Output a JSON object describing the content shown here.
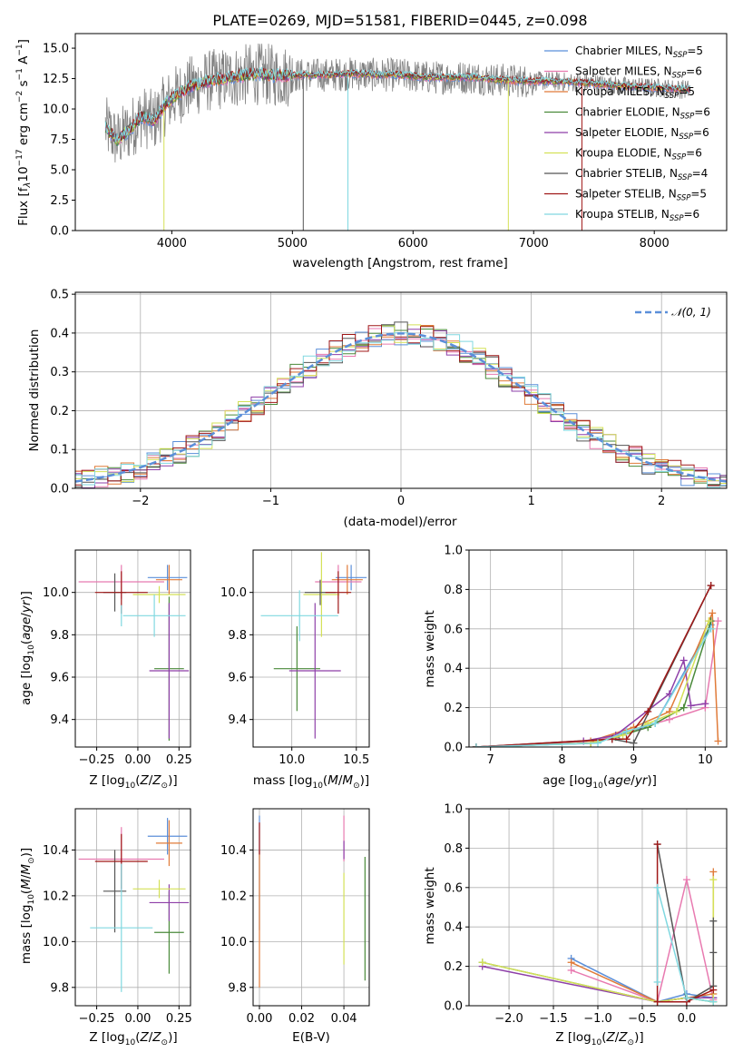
{
  "figure": {
    "title": "PLATE=0269, MJD=51581, FIBERID=0445, z=0.098"
  },
  "legend": [
    {
      "name": "Chabrier MILES, N$_{SSP}$=5",
      "base": "Chabrier MILES, N",
      "sub": "SSP",
      "tail": "=5",
      "color": "#5b8fd9"
    },
    {
      "name": "Salpeter MILES, N$_{SSP}$=6",
      "base": "Salpeter MILES, N",
      "sub": "SSP",
      "tail": "=6",
      "color": "#e87ab0"
    },
    {
      "name": "Kroupa MILES, N$_{SSP}$=5",
      "base": "Kroupa MILES, N",
      "sub": "SSP",
      "tail": "=5",
      "color": "#e07b39"
    },
    {
      "name": "Chabrier ELODIE, N$_{SSP}$=6",
      "base": "Chabrier ELODIE, N",
      "sub": "SSP",
      "tail": "=6",
      "color": "#4a8a3a"
    },
    {
      "name": "Salpeter ELODIE, N$_{SSP}$=6",
      "base": "Salpeter ELODIE, N",
      "sub": "SSP",
      "tail": "=6",
      "color": "#8e3fa8"
    },
    {
      "name": "Kroupa ELODIE, N$_{SSP}$=6",
      "base": "Kroupa ELODIE, N",
      "sub": "SSP",
      "tail": "=6",
      "color": "#d4e157"
    },
    {
      "name": "Chabrier STELIB, N$_{SSP}$=4",
      "base": "Chabrier STELIB, N",
      "sub": "SSP",
      "tail": "=4",
      "color": "#555555"
    },
    {
      "name": "Salpeter STELIB, N$_{SSP}$=5",
      "base": "Salpeter STELIB, N",
      "sub": "SSP",
      "tail": "=5",
      "color": "#a01818"
    },
    {
      "name": "Kroupa STELIB, N$_{SSP}$=6",
      "base": "Kroupa STELIB, N",
      "sub": "SSP",
      "tail": "=6",
      "color": "#80d8e0"
    }
  ],
  "chart_data": [
    {
      "id": "spectrum",
      "type": "line",
      "title": "PLATE=0269, MJD=51581, FIBERID=0445, z=0.098",
      "xlabel": "wavelength [Angstrom, rest frame]",
      "ylabel": "Flux [f$_\\lambda$10$^{-17}$ erg cm$^{-2}$ s$^{-1}$ A$^{-1}$]",
      "ylabel_text": {
        "a": "Flux [f",
        "b": "λ",
        "c": "10",
        "d": "−17",
        "e": " erg cm",
        "f": "−2",
        "g": " s",
        "h": "−1",
        "i": " A",
        "j": "−1",
        "k": "]"
      },
      "xlim": [
        3200,
        8600
      ],
      "ylim": [
        0,
        16.2
      ],
      "xticks": [
        4000,
        5000,
        6000,
        7000,
        8000
      ],
      "yticks": [
        0.0,
        2.5,
        5.0,
        7.5,
        10.0,
        12.5,
        15.0
      ],
      "xtick_labels": [
        "4000",
        "5000",
        "6000",
        "7000",
        "8000"
      ],
      "ytick_labels": [
        "0.0",
        "2.5",
        "5.0",
        "7.5",
        "10.0",
        "12.5",
        "15.0"
      ],
      "continuum": {
        "x": [
          3450,
          3550,
          3650,
          3750,
          3850,
          3950,
          4050,
          4150,
          4300,
          4500,
          4700,
          4900,
          5100,
          5300,
          5500,
          5700,
          5900,
          6100,
          6300,
          6500,
          6700,
          6900,
          7100,
          7300,
          7500,
          7700,
          7900,
          8100,
          8300
        ],
        "y": [
          8.5,
          7.4,
          8.3,
          9.4,
          9.0,
          10.4,
          11.2,
          11.8,
          12.3,
          12.6,
          12.9,
          12.7,
          12.8,
          12.8,
          12.9,
          12.8,
          12.8,
          12.6,
          12.6,
          12.6,
          12.4,
          12.3,
          12.3,
          12.2,
          12.1,
          11.9,
          11.8,
          11.7,
          11.6
        ]
      },
      "dips": [
        {
          "x": 3935,
          "y": 0.0,
          "series": "Kroupa ELODIE, N$_{SSP}$=6"
        },
        {
          "x": 5460,
          "y": 0.0,
          "series": "Kroupa STELIB, N$_{SSP}$=6"
        },
        {
          "x": 6790,
          "y": 0.0,
          "series": "Kroupa ELODIE, N$_{SSP}$=6"
        },
        {
          "x": 7400,
          "y": 0.0,
          "series": "Salpeter STELIB, N$_{SSP}$=5"
        },
        {
          "x": 5090,
          "y": 0.0,
          "series": "Chabrier STELIB, N$_{SSP}$=4"
        }
      ]
    },
    {
      "id": "residuals",
      "type": "histogram",
      "xlabel": "(data-model)/error",
      "ylabel": "Normed distribution",
      "xlim": [
        -2.5,
        2.5
      ],
      "ylim": [
        0,
        0.505
      ],
      "xticks": [
        -2,
        -1,
        0,
        1,
        2
      ],
      "yticks": [
        0.0,
        0.1,
        0.2,
        0.3,
        0.4,
        0.5
      ],
      "xtick_labels": [
        "−2",
        "−1",
        "0",
        "1",
        "2"
      ],
      "ytick_labels": [
        "0.0",
        "0.1",
        "0.2",
        "0.3",
        "0.4",
        "0.5"
      ],
      "bin_width": 0.1,
      "gaussian": {
        "name": "$\\mathcal{N}(0,1)$",
        "label": "𝒩(0, 1)",
        "mu": 0,
        "sigma": 1,
        "color": "#5b8fd9"
      }
    },
    {
      "id": "age-vs-Z",
      "type": "scatter",
      "xlabel": "Z [log$_{10}$(Z/Z$_\\odot$)]",
      "ylabel": "age  [log$_{10}$(age/yr)]",
      "xlim": [
        -0.38,
        0.32
      ],
      "ylim": [
        9.27,
        10.2
      ],
      "xticks": [
        -0.25,
        0.0,
        0.25
      ],
      "yticks": [
        9.4,
        9.6,
        9.8,
        10.0
      ],
      "xtick_labels": [
        "−0.25",
        "0.00",
        "0.25"
      ],
      "ytick_labels": [
        "9.4",
        "9.6",
        "9.8",
        "10.0"
      ],
      "points": [
        {
          "x": 0.18,
          "y": 10.07,
          "xerr": 0.12,
          "yerr": 0.06,
          "series": "Chabrier MILES, N$_{SSP}$=5"
        },
        {
          "x": -0.1,
          "y": 10.05,
          "xerr": 0.26,
          "yerr": 0.08,
          "series": "Salpeter MILES, N$_{SSP}$=6"
        },
        {
          "x": 0.19,
          "y": 10.06,
          "xerr": 0.08,
          "yerr": 0.07,
          "series": "Kroupa MILES, N$_{SSP}$=5"
        },
        {
          "x": 0.19,
          "y": 9.64,
          "xerr": 0.09,
          "yerr": 0.34,
          "series": "Chabrier ELODIE, N$_{SSP}$=6"
        },
        {
          "x": 0.19,
          "y": 9.63,
          "xerr": 0.12,
          "yerr": 0.32,
          "series": "Salpeter ELODIE, N$_{SSP}$=6"
        },
        {
          "x": 0.13,
          "y": 9.99,
          "xerr": 0.16,
          "yerr": 0.04,
          "series": "Kroupa ELODIE, N$_{SSP}$=6"
        },
        {
          "x": -0.14,
          "y": 10.0,
          "xerr": 0.07,
          "yerr": 0.09,
          "series": "Chabrier STELIB, N$_{SSP}$=4"
        },
        {
          "x": -0.1,
          "y": 10.0,
          "xerr": 0.16,
          "yerr": 0.1,
          "series": "Salpeter STELIB, N$_{SSP}$=5"
        },
        {
          "x": 0.1,
          "y": 9.89,
          "xerr": 0.19,
          "yerr": 0.1,
          "series": "Kroupa STELIB, N$_{SSP}$=6"
        },
        {
          "x": -0.1,
          "y": 9.89,
          "xerr": 0.0,
          "yerr": 0.05,
          "series": "Kroupa STELIB, N$_{SSP}$=6"
        }
      ]
    },
    {
      "id": "age-vs-mass",
      "type": "scatter",
      "xlabel": "mass [log$_{10}$(M/M$_\\odot$)]",
      "ylabel": "",
      "xlim": [
        9.7,
        10.6
      ],
      "ylim": [
        9.27,
        10.2
      ],
      "xticks": [
        10.0,
        10.5
      ],
      "yticks": [
        9.4,
        9.6,
        9.8,
        10.0
      ],
      "xtick_labels": [
        "10.0",
        "10.5"
      ],
      "ytick_labels": [
        "9.4",
        "9.6",
        "9.8",
        "10.0"
      ],
      "points": [
        {
          "x": 10.46,
          "y": 10.07,
          "xerr": 0.12,
          "yerr": 0.06,
          "series": "Chabrier MILES, N$_{SSP}$=5"
        },
        {
          "x": 10.36,
          "y": 10.05,
          "xerr": 0.18,
          "yerr": 0.08,
          "series": "Salpeter MILES, N$_{SSP}$=6"
        },
        {
          "x": 10.43,
          "y": 10.06,
          "xerr": 0.12,
          "yerr": 0.07,
          "series": "Kroupa MILES, N$_{SSP}$=5"
        },
        {
          "x": 10.04,
          "y": 9.64,
          "xerr": 0.18,
          "yerr": 0.2,
          "series": "Chabrier ELODIE, N$_{SSP}$=6"
        },
        {
          "x": 10.18,
          "y": 9.63,
          "xerr": 0.2,
          "yerr": 0.32,
          "series": "Salpeter ELODIE, N$_{SSP}$=6"
        },
        {
          "x": 10.23,
          "y": 9.99,
          "xerr": 0.14,
          "yerr": 0.2,
          "series": "Kroupa ELODIE, N$_{SSP}$=6"
        },
        {
          "x": 10.22,
          "y": 10.0,
          "xerr": 0.12,
          "yerr": 0.06,
          "series": "Chabrier STELIB, N$_{SSP}$=4"
        },
        {
          "x": 10.36,
          "y": 10.0,
          "xerr": 0.1,
          "yerr": 0.1,
          "series": "Salpeter STELIB, N$_{SSP}$=5"
        },
        {
          "x": 10.06,
          "y": 9.89,
          "xerr": 0.3,
          "yerr": 0.12,
          "series": "Kroupa STELIB, N$_{SSP}$=6"
        }
      ]
    },
    {
      "id": "weight-vs-age",
      "type": "line",
      "xlabel": "age  [log$_{10}$(age/yr)]",
      "ylabel": "mass weight",
      "xlim": [
        6.7,
        10.3
      ],
      "ylim": [
        0,
        1.0
      ],
      "xticks": [
        7,
        8,
        9,
        10
      ],
      "yticks": [
        0.0,
        0.2,
        0.4,
        0.6,
        0.8,
        1.0
      ],
      "xtick_labels": [
        "7",
        "8",
        "9",
        "10"
      ],
      "ytick_labels": [
        "0.0",
        "0.2",
        "0.4",
        "0.6",
        "0.8",
        "1.0"
      ],
      "series": [
        {
          "name": "Chabrier MILES, N$_{SSP}$=5",
          "x": [
            6.8,
            8.4,
            8.8,
            9.3,
            10.08
          ],
          "y": [
            0.0,
            0.02,
            0.06,
            0.12,
            0.62
          ]
        },
        {
          "name": "Salpeter MILES, N$_{SSP}$=6",
          "x": [
            6.8,
            8.4,
            8.9,
            9.5,
            10.0,
            10.18
          ],
          "y": [
            0.0,
            0.02,
            0.08,
            0.14,
            0.2,
            0.64
          ]
        },
        {
          "name": "Kroupa MILES, N$_{SSP}$=5",
          "x": [
            6.8,
            8.4,
            9.0,
            9.5,
            10.1,
            10.18
          ],
          "y": [
            0.0,
            0.03,
            0.1,
            0.18,
            0.68,
            0.03
          ]
        },
        {
          "name": "Chabrier ELODIE, N$_{SSP}$=6",
          "x": [
            6.8,
            8.4,
            8.75,
            9.2,
            9.7,
            10.08
          ],
          "y": [
            0.0,
            0.02,
            0.05,
            0.1,
            0.2,
            0.64
          ]
        },
        {
          "name": "Salpeter ELODIE, N$_{SSP}$=6",
          "x": [
            6.8,
            8.3,
            8.75,
            9.5,
            9.7,
            9.8,
            10.0
          ],
          "y": [
            0.0,
            0.03,
            0.06,
            0.27,
            0.44,
            0.21,
            0.22
          ]
        },
        {
          "name": "Kroupa ELODIE, N$_{SSP}$=6",
          "x": [
            6.8,
            8.4,
            8.85,
            9.2,
            9.6,
            10.05
          ],
          "y": [
            0.0,
            0.02,
            0.06,
            0.12,
            0.18,
            0.64
          ]
        },
        {
          "name": "Chabrier STELIB, N$_{SSP}$=4",
          "x": [
            6.8,
            8.7,
            9.0,
            10.08
          ],
          "y": [
            0.0,
            0.04,
            0.02,
            0.82
          ]
        },
        {
          "name": "Salpeter STELIB, N$_{SSP}$=5",
          "x": [
            6.8,
            8.7,
            8.9,
            9.2,
            10.08
          ],
          "y": [
            0.0,
            0.04,
            0.04,
            0.18,
            0.82
          ]
        },
        {
          "name": "Kroupa STELIB, N$_{SSP}$=6",
          "x": [
            6.8,
            8.5,
            8.9,
            9.3,
            10.08
          ],
          "y": [
            0.0,
            0.02,
            0.08,
            0.12,
            0.6
          ]
        }
      ]
    },
    {
      "id": "mass-vs-Z",
      "type": "scatter",
      "xlabel": "Z [log$_{10}$(Z/Z$_\\odot$)]",
      "ylabel": "mass [log$_{10}$(M/M$_\\odot$)]",
      "xlim": [
        -0.38,
        0.32
      ],
      "ylim": [
        9.72,
        10.58
      ],
      "xticks": [
        -0.25,
        0.0,
        0.25
      ],
      "yticks": [
        9.8,
        10.0,
        10.2,
        10.4
      ],
      "xtick_labels": [
        "−0.25",
        "0.00",
        "0.25"
      ],
      "ytick_labels": [
        "9.8",
        "10.0",
        "10.2",
        "10.4"
      ],
      "points": [
        {
          "x": 0.18,
          "y": 10.46,
          "xerr": 0.12,
          "yerr": 0.08,
          "series": "Chabrier MILES, N$_{SSP}$=5"
        },
        {
          "x": -0.1,
          "y": 10.36,
          "xerr": 0.26,
          "yerr": 0.14,
          "series": "Salpeter MILES, N$_{SSP}$=6"
        },
        {
          "x": 0.19,
          "y": 10.43,
          "xerr": 0.08,
          "yerr": 0.1,
          "series": "Kroupa MILES, N$_{SSP}$=5"
        },
        {
          "x": 0.19,
          "y": 10.04,
          "xerr": 0.09,
          "yerr": 0.18,
          "series": "Chabrier ELODIE, N$_{SSP}$=6"
        },
        {
          "x": 0.19,
          "y": 10.17,
          "xerr": 0.12,
          "yerr": 0.08,
          "series": "Salpeter ELODIE, N$_{SSP}$=6"
        },
        {
          "x": 0.13,
          "y": 10.23,
          "xerr": 0.16,
          "yerr": 0.04,
          "series": "Kroupa ELODIE, N$_{SSP}$=6"
        },
        {
          "x": -0.14,
          "y": 10.22,
          "xerr": 0.07,
          "yerr": 0.18,
          "series": "Chabrier STELIB, N$_{SSP}$=4"
        },
        {
          "x": -0.1,
          "y": 10.35,
          "xerr": 0.16,
          "yerr": 0.12,
          "series": "Salpeter STELIB, N$_{SSP}$=5"
        },
        {
          "x": -0.1,
          "y": 10.06,
          "xerr": 0.19,
          "yerr": 0.28,
          "series": "Kroupa STELIB, N$_{SSP}$=6"
        }
      ]
    },
    {
      "id": "mass-vs-EBV",
      "type": "scatter",
      "xlabel": "E(B-V)",
      "ylabel": "",
      "xlim": [
        -0.003,
        0.052
      ],
      "ylim": [
        9.72,
        10.58
      ],
      "xticks": [
        0.0,
        0.02,
        0.04
      ],
      "yticks": [
        9.8,
        10.0,
        10.2,
        10.4
      ],
      "xtick_labels": [
        "0.00",
        "0.02",
        "0.04"
      ],
      "ytick_labels": [
        "9.8",
        "10.0",
        "10.2",
        "10.4"
      ],
      "points": [
        {
          "x": 0.0,
          "y": 10.3,
          "xerr": 0,
          "yerr": 0.25,
          "series": "Chabrier MILES, N$_{SSP}$=5"
        },
        {
          "x": 0.04,
          "y": 10.45,
          "xerr": 0,
          "yerr": 0.1,
          "series": "Salpeter MILES, N$_{SSP}$=6"
        },
        {
          "x": 0.0,
          "y": 10.1,
          "xerr": 0,
          "yerr": 0.3,
          "series": "Kroupa MILES, N$_{SSP}$=5"
        },
        {
          "x": 0.05,
          "y": 10.1,
          "xerr": 0,
          "yerr": 0.27,
          "series": "Chabrier ELODIE, N$_{SSP}$=6"
        },
        {
          "x": 0.04,
          "y": 10.4,
          "xerr": 0,
          "yerr": 0.04,
          "series": "Salpeter ELODIE, N$_{SSP}$=6"
        },
        {
          "x": 0.04,
          "y": 10.1,
          "xerr": 0,
          "yerr": 0.2,
          "series": "Kroupa ELODIE, N$_{SSP}$=6"
        },
        {
          "x": 0.0,
          "y": 10.45,
          "xerr": 0,
          "yerr": 0.07,
          "series": "Salpeter STELIB, N$_{SSP}$=5"
        }
      ]
    },
    {
      "id": "weight-vs-Z",
      "type": "line",
      "xlabel": "Z [log$_{10}$(Z/Z$_\\odot$)]",
      "ylabel": "mass weight",
      "xlim": [
        -2.45,
        0.45
      ],
      "ylim": [
        0,
        1.0
      ],
      "xticks": [
        -2.0,
        -1.5,
        -1.0,
        -0.5,
        0.0
      ],
      "yticks": [
        0.0,
        0.2,
        0.4,
        0.6,
        0.8,
        1.0
      ],
      "xtick_labels": [
        "−2.0",
        "−1.5",
        "−1.0",
        "−0.5",
        "0.0"
      ],
      "ytick_labels": [
        "0.0",
        "0.2",
        "0.4",
        "0.6",
        "0.8",
        "1.0"
      ],
      "series": [
        {
          "name": "Chabrier MILES, N$_{SSP}$=5",
          "x": [
            -1.3,
            -0.33,
            0.0,
            0.3
          ],
          "y": [
            0.24,
            0.02,
            0.06,
            0.04
          ]
        },
        {
          "name": "Salpeter MILES, N$_{SSP}$=6",
          "x": [
            -1.3,
            -0.33,
            0.0,
            0.3
          ],
          "y": [
            0.18,
            0.02,
            0.64,
            0.03
          ]
        },
        {
          "name": "Kroupa MILES, N$_{SSP}$=5",
          "x": [
            -1.3,
            -0.33,
            0.0,
            0.3,
            0.3
          ],
          "y": [
            0.22,
            0.02,
            0.04,
            0.06,
            0.68
          ]
        },
        {
          "name": "Chabrier ELODIE, N$_{SSP}$=6",
          "x": [
            -2.3,
            -0.33,
            0.0,
            0.3
          ],
          "y": [
            0.22,
            0.02,
            0.04,
            0.02
          ]
        },
        {
          "name": "Salpeter ELODIE, N$_{SSP}$=6",
          "x": [
            -2.3,
            -0.33,
            0.0,
            0.3
          ],
          "y": [
            0.2,
            0.02,
            0.04,
            0.04
          ]
        },
        {
          "name": "Kroupa ELODIE, N$_{SSP}$=6",
          "x": [
            -2.3,
            -0.33,
            0.0,
            0.3,
            0.3
          ],
          "y": [
            0.22,
            0.02,
            0.04,
            0.02,
            0.64
          ]
        },
        {
          "name": "Chabrier STELIB, N$_{SSP}$=4",
          "x": [
            -0.33,
            0.0,
            0.3,
            0.3,
            0.3
          ],
          "y": [
            0.82,
            0.02,
            0.1,
            0.27,
            0.43
          ]
        },
        {
          "name": "Salpeter STELIB, N$_{SSP}$=5",
          "x": [
            -0.33,
            -0.33,
            0.0,
            0.3
          ],
          "y": [
            0.82,
            0.02,
            0.02,
            0.08
          ]
        },
        {
          "name": "Kroupa STELIB, N$_{SSP}$=6",
          "x": [
            -0.33,
            -0.33,
            0.0,
            0.3
          ],
          "y": [
            0.12,
            0.6,
            0.04,
            0.02
          ]
        }
      ]
    }
  ]
}
